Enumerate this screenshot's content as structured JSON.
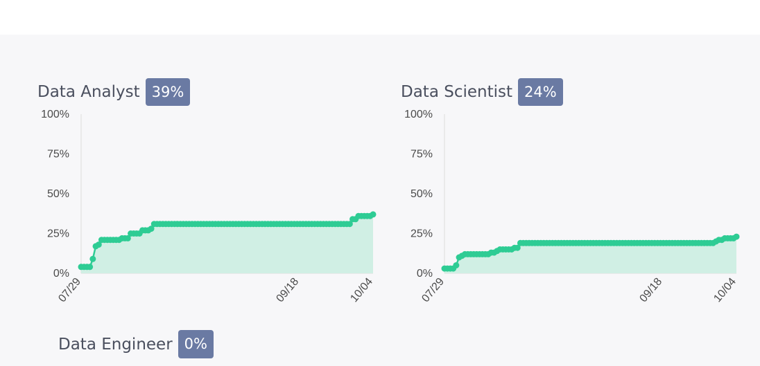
{
  "charts": [
    {
      "title": "Data Analyst",
      "badge": "39%"
    },
    {
      "title": "Data Scientist",
      "badge": "24%"
    }
  ],
  "bottom": {
    "title": "Data Engineer",
    "badge": "0%"
  },
  "colors": {
    "line": "#2ecc94",
    "fill": "#d0efe4",
    "badge": "#6a7aa3",
    "axis": "#dcdcdc"
  },
  "chart_data": [
    {
      "type": "area",
      "title": "Data Analyst",
      "x_ticks": [
        "07/29",
        "09/18",
        "10/04"
      ],
      "y_ticks": [
        "0%",
        "25%",
        "50%",
        "75%",
        "100%"
      ],
      "ylim": [
        0,
        100
      ],
      "xlim": [
        "07/29",
        "10/04"
      ],
      "grid": false,
      "values": [
        4,
        4,
        4,
        4,
        9,
        17,
        18,
        21,
        21,
        21,
        21,
        21,
        21,
        21,
        22,
        22,
        22,
        25,
        25,
        25,
        25,
        27,
        27,
        27,
        28,
        31,
        31,
        31,
        31,
        31,
        31,
        31,
        31,
        31,
        31,
        31,
        31,
        31,
        31,
        31,
        31,
        31,
        31,
        31,
        31,
        31,
        31,
        31,
        31,
        31,
        31,
        31,
        31,
        31,
        31,
        31,
        31,
        31,
        31,
        31,
        31,
        31,
        31,
        31,
        31,
        31,
        31,
        31,
        31,
        31,
        31,
        31,
        31,
        31,
        31,
        31,
        31,
        31,
        31,
        31,
        31,
        31,
        31,
        31,
        31,
        31,
        31,
        31,
        31,
        31,
        31,
        31,
        31,
        34,
        34,
        36,
        36,
        36,
        36,
        36,
        37
      ]
    },
    {
      "type": "area",
      "title": "Data Scientist",
      "x_ticks": [
        "07/29",
        "09/18",
        "10/04"
      ],
      "y_ticks": [
        "0%",
        "25%",
        "50%",
        "75%",
        "100%"
      ],
      "ylim": [
        0,
        100
      ],
      "xlim": [
        "07/29",
        "10/04"
      ],
      "grid": false,
      "values": [
        3,
        3,
        3,
        3,
        5,
        10,
        11,
        12,
        12,
        12,
        12,
        12,
        12,
        12,
        12,
        12,
        13,
        13,
        14,
        15,
        15,
        15,
        15,
        15,
        16,
        16,
        19,
        19,
        19,
        19,
        19,
        19,
        19,
        19,
        19,
        19,
        19,
        19,
        19,
        19,
        19,
        19,
        19,
        19,
        19,
        19,
        19,
        19,
        19,
        19,
        19,
        19,
        19,
        19,
        19,
        19,
        19,
        19,
        19,
        19,
        19,
        19,
        19,
        19,
        19,
        19,
        19,
        19,
        19,
        19,
        19,
        19,
        19,
        19,
        19,
        19,
        19,
        19,
        19,
        19,
        19,
        19,
        19,
        19,
        19,
        19,
        19,
        19,
        19,
        19,
        19,
        19,
        19,
        20,
        21,
        21,
        22,
        22,
        22,
        22,
        23
      ]
    }
  ]
}
